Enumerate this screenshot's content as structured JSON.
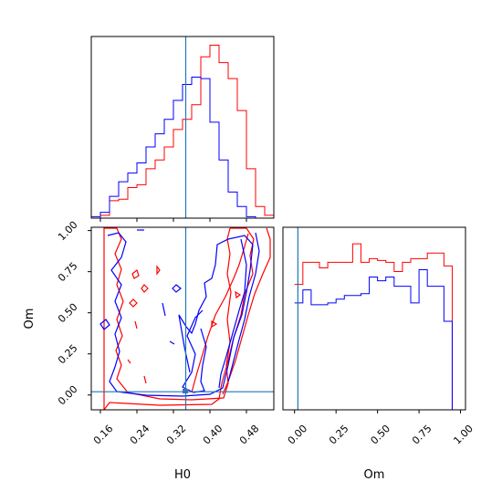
{
  "chart_data": {
    "type": "corner",
    "parameters": [
      "H0",
      "Om"
    ],
    "truth": {
      "H0": 0.347,
      "Om": 0.02
    },
    "colors": {
      "series_a": "#ff0000",
      "series_b": "#0000ff",
      "truth": "#1f77b4"
    },
    "h0_axis": {
      "range": [
        0.14,
        0.54
      ],
      "ticks": [
        0.16,
        0.24,
        0.32,
        0.4,
        0.48
      ],
      "tick_labels": [
        "0.16",
        "0.24",
        "0.32",
        "0.40",
        "0.48"
      ],
      "label": "H0"
    },
    "om_axis": {
      "range": [
        -0.09,
        1.02
      ],
      "ticks": [
        0.0,
        0.25,
        0.5,
        0.75,
        1.0
      ],
      "tick_labels": [
        "0.00",
        "0.25",
        "0.50",
        "0.75",
        "1.00"
      ],
      "label": "Om"
    },
    "om_hist_range": [
      -0.07,
      1.03
    ],
    "h0_hist": {
      "bin_edges": [
        0.14,
        0.16,
        0.18,
        0.2,
        0.22,
        0.24,
        0.26,
        0.28,
        0.3,
        0.32,
        0.34,
        0.36,
        0.38,
        0.4,
        0.42,
        0.44,
        0.46,
        0.48,
        0.5,
        0.52,
        0.54
      ],
      "series_a": [
        0,
        2,
        12,
        13,
        21,
        23,
        34,
        40,
        49,
        61,
        68,
        78,
        111,
        119,
        107,
        96,
        74,
        34,
        8,
        2
      ],
      "series_b": [
        1,
        4,
        15,
        25,
        31,
        38,
        49,
        58,
        68,
        81,
        92,
        97,
        96,
        66,
        40,
        18,
        8,
        1,
        0,
        0
      ]
    },
    "om_hist": {
      "bin_edges": [
        0.0,
        0.05,
        0.1,
        0.15,
        0.2,
        0.25,
        0.3,
        0.35,
        0.4,
        0.45,
        0.5,
        0.55,
        0.6,
        0.65,
        0.7,
        0.75,
        0.8,
        0.85,
        0.9,
        0.95,
        1.0
      ],
      "series_a": [
        68,
        80,
        80,
        77,
        80,
        80,
        80,
        90,
        80,
        82,
        81,
        80,
        75,
        80,
        82,
        82,
        85,
        85,
        78,
        0
      ],
      "series_b": [
        58,
        65,
        57,
        57,
        58,
        60,
        62,
        62,
        63,
        72,
        70,
        72,
        67,
        67,
        58,
        76,
        67,
        67,
        48,
        0
      ]
    }
  }
}
